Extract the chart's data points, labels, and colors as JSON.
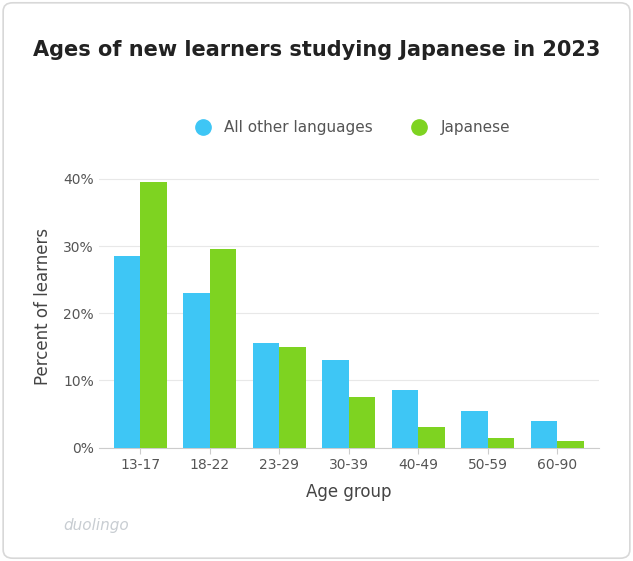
{
  "title": "Ages of new learners studying Japanese in 2023",
  "xlabel": "Age group",
  "ylabel": "Percent of learners",
  "categories": [
    "13-17",
    "18-22",
    "23-29",
    "30-39",
    "40-49",
    "50-59",
    "60-90"
  ],
  "all_other": [
    28.5,
    23.0,
    15.5,
    13.0,
    8.5,
    5.5,
    4.0
  ],
  "japanese": [
    39.5,
    29.5,
    15.0,
    7.5,
    3.0,
    1.5,
    1.0
  ],
  "color_other": "#3ec6f5",
  "color_japanese": "#7ed321",
  "ylim": [
    0,
    42
  ],
  "yticks": [
    0,
    10,
    20,
    30,
    40
  ],
  "ytick_labels": [
    "0%",
    "10%",
    "20%",
    "30%",
    "40%"
  ],
  "legend_other": "All other languages",
  "legend_japanese": "Japanese",
  "background_color": "#ffffff",
  "title_fontsize": 15,
  "axis_label_fontsize": 12,
  "tick_fontsize": 10,
  "legend_fontsize": 11,
  "bar_width": 0.38,
  "duolingo_text": "duolingo",
  "duolingo_color": "#c8cdd2"
}
